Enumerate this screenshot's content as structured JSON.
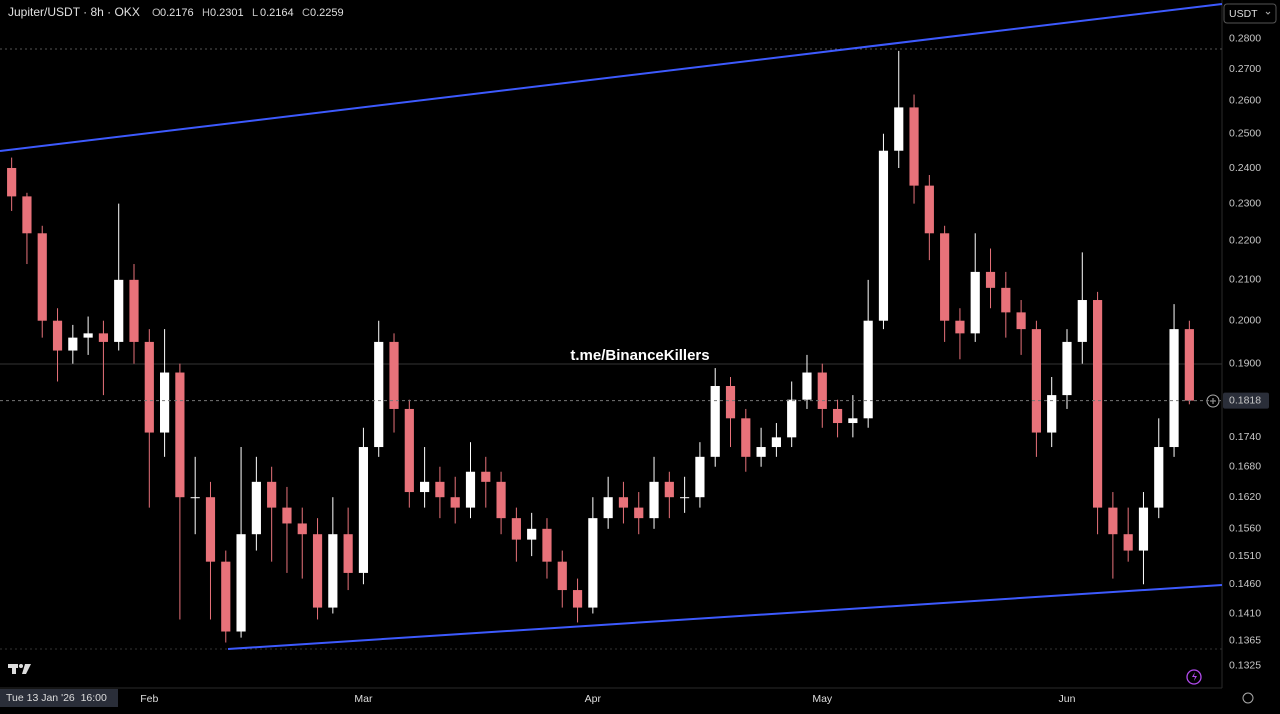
{
  "chart_data": {
    "type": "candlestick",
    "title": "Jupiter/USDT · 8h · OKX",
    "ohlc_header": [
      {
        "key": "O",
        "value": "0.2176"
      },
      {
        "key": "H",
        "value": "0.2301"
      },
      {
        "key": "L",
        "value": "0.2164"
      },
      {
        "key": "C",
        "value": "0.2259"
      }
    ],
    "currency": "USDT",
    "watermark": "t.me/BinanceKillers",
    "crosshair_date": "Tue 13 Jan '26  16:00",
    "last_price": 0.1818,
    "log_scale": true,
    "up_color": "#ffffff",
    "down_color": "#e8727a",
    "ylim": [
      0.129,
      0.2933
    ],
    "yticks": [
      {
        "value": 0.28,
        "label": "0.2800"
      },
      {
        "value": 0.27,
        "label": "0.2700"
      },
      {
        "value": 0.26,
        "label": "0.2600"
      },
      {
        "value": 0.25,
        "label": "0.2500"
      },
      {
        "value": 0.24,
        "label": "0.2400"
      },
      {
        "value": 0.23,
        "label": "0.2300"
      },
      {
        "value": 0.22,
        "label": "0.2200"
      },
      {
        "value": 0.21,
        "label": "0.2100"
      },
      {
        "value": 0.2,
        "label": "0.2000"
      },
      {
        "value": 0.19,
        "label": "0.1900"
      },
      {
        "value": 0.174,
        "label": "0.1740"
      },
      {
        "value": 0.168,
        "label": "0.1680"
      },
      {
        "value": 0.162,
        "label": "0.1620"
      },
      {
        "value": 0.156,
        "label": "0.1560"
      },
      {
        "value": 0.151,
        "label": "0.1510"
      },
      {
        "value": 0.146,
        "label": "0.1460"
      },
      {
        "value": 0.141,
        "label": "0.1410"
      },
      {
        "value": 0.1365,
        "label": "0.1365"
      },
      {
        "value": 0.1325,
        "label": "0.1325"
      }
    ],
    "categories": [
      null,
      null,
      null,
      null,
      null,
      null,
      null,
      null,
      null,
      "Feb",
      null,
      null,
      null,
      null,
      null,
      null,
      null,
      null,
      null,
      null,
      null,
      null,
      null,
      "Mar",
      null,
      null,
      null,
      null,
      null,
      null,
      null,
      null,
      null,
      null,
      null,
      null,
      null,
      null,
      "Apr",
      null,
      null,
      null,
      null,
      null,
      null,
      null,
      null,
      null,
      null,
      null,
      null,
      null,
      null,
      "May",
      null,
      null,
      null,
      null,
      null,
      null,
      null,
      null,
      null,
      null,
      null,
      null,
      null,
      null,
      null,
      "Jun",
      null,
      null,
      null,
      null,
      null,
      null,
      null,
      null
    ],
    "open": [
      0.24,
      0.232,
      0.222,
      0.2,
      0.193,
      0.196,
      0.197,
      0.195,
      0.21,
      0.195,
      0.175,
      0.188,
      0.162,
      0.162,
      0.15,
      0.138,
      0.155,
      0.165,
      0.16,
      0.157,
      0.155,
      0.142,
      0.155,
      0.148,
      0.172,
      0.195,
      0.18,
      0.163,
      0.165,
      0.162,
      0.16,
      0.167,
      0.165,
      0.158,
      0.154,
      0.156,
      0.15,
      0.145,
      0.142,
      0.158,
      0.162,
      0.16,
      0.158,
      0.165,
      0.162,
      0.162,
      0.17,
      0.185,
      0.178,
      0.17,
      0.172,
      0.174,
      0.182,
      0.188,
      0.18,
      0.177,
      0.178,
      0.2,
      0.245,
      0.258,
      0.235,
      0.222,
      0.2,
      0.197,
      0.212,
      0.208,
      0.202,
      0.198,
      0.175,
      0.183,
      0.195,
      0.205,
      0.16,
      0.155,
      0.152,
      0.16,
      0.172,
      0.198
    ],
    "high": [
      0.243,
      0.233,
      0.224,
      0.203,
      0.199,
      0.201,
      0.2,
      0.23,
      0.214,
      0.198,
      0.198,
      0.19,
      0.17,
      0.165,
      0.152,
      0.172,
      0.17,
      0.168,
      0.164,
      0.16,
      0.158,
      0.162,
      0.16,
      0.176,
      0.2,
      0.197,
      0.182,
      0.172,
      0.168,
      0.166,
      0.173,
      0.17,
      0.167,
      0.16,
      0.159,
      0.158,
      0.152,
      0.147,
      0.162,
      0.166,
      0.165,
      0.163,
      0.17,
      0.167,
      0.166,
      0.173,
      0.189,
      0.187,
      0.18,
      0.176,
      0.177,
      0.186,
      0.192,
      0.19,
      0.182,
      0.183,
      0.21,
      0.25,
      0.276,
      0.262,
      0.238,
      0.224,
      0.203,
      0.222,
      0.218,
      0.212,
      0.205,
      0.2,
      0.187,
      0.198,
      0.217,
      0.207,
      0.163,
      0.16,
      0.163,
      0.178,
      0.204,
      0.2
    ],
    "low": [
      0.228,
      0.214,
      0.196,
      0.186,
      0.19,
      0.192,
      0.183,
      0.193,
      0.19,
      0.16,
      0.17,
      0.14,
      0.155,
      0.14,
      0.1362,
      0.137,
      0.152,
      0.15,
      0.148,
      0.147,
      0.14,
      0.141,
      0.145,
      0.146,
      0.17,
      0.175,
      0.16,
      0.16,
      0.158,
      0.157,
      0.158,
      0.16,
      0.155,
      0.15,
      0.151,
      0.147,
      0.142,
      0.1395,
      0.141,
      0.156,
      0.157,
      0.155,
      0.156,
      0.158,
      0.159,
      0.16,
      0.168,
      0.172,
      0.167,
      0.168,
      0.17,
      0.172,
      0.18,
      0.176,
      0.174,
      0.174,
      0.176,
      0.198,
      0.24,
      0.23,
      0.215,
      0.195,
      0.191,
      0.195,
      0.203,
      0.196,
      0.192,
      0.17,
      0.172,
      0.18,
      0.19,
      0.155,
      0.147,
      0.15,
      0.146,
      0.158,
      0.17,
      0.181
    ],
    "close": [
      0.232,
      0.222,
      0.2,
      0.193,
      0.196,
      0.197,
      0.195,
      0.21,
      0.195,
      0.175,
      0.188,
      0.162,
      0.162,
      0.15,
      0.138,
      0.155,
      0.165,
      0.16,
      0.157,
      0.155,
      0.142,
      0.155,
      0.148,
      0.172,
      0.195,
      0.18,
      0.163,
      0.165,
      0.162,
      0.16,
      0.167,
      0.165,
      0.158,
      0.154,
      0.156,
      0.15,
      0.145,
      0.142,
      0.158,
      0.162,
      0.16,
      0.158,
      0.165,
      0.162,
      0.162,
      0.17,
      0.185,
      0.178,
      0.17,
      0.172,
      0.174,
      0.182,
      0.188,
      0.18,
      0.177,
      0.178,
      0.2,
      0.245,
      0.258,
      0.235,
      0.222,
      0.2,
      0.197,
      0.212,
      0.208,
      0.202,
      0.198,
      0.175,
      0.183,
      0.195,
      0.205,
      0.16,
      0.155,
      0.152,
      0.16,
      0.172,
      0.198,
      0.1818
    ]
  }
}
